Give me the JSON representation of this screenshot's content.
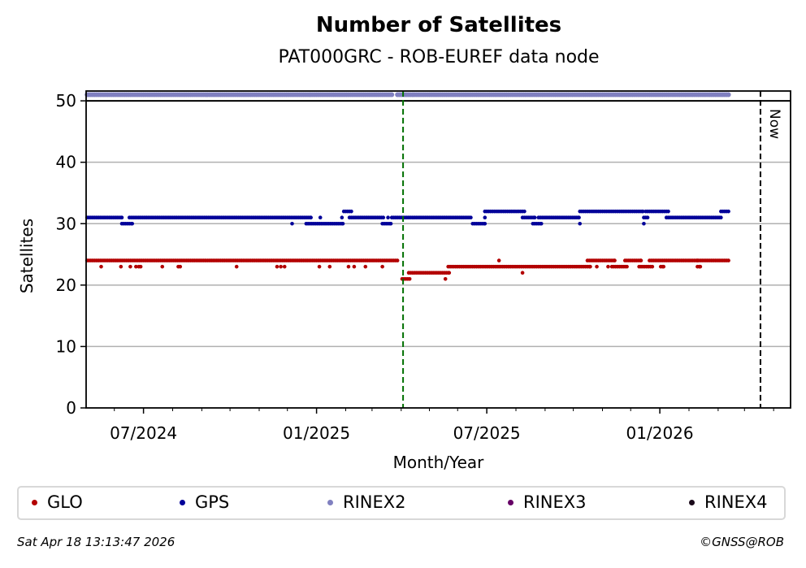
{
  "chart_data": {
    "type": "scatter",
    "title": "Number of Satellites",
    "subtitle": "PAT000GRC - ROB-EUREF data node",
    "xlabel": "Month/Year",
    "ylabel": "Satellites",
    "x_unit": "days since 2024-07-01",
    "xlim": [
      -61,
      688
    ],
    "ylim": [
      0,
      51.6
    ],
    "yticks": [
      0,
      10,
      20,
      30,
      40,
      50
    ],
    "ytick_labels": [
      "0",
      "10",
      "20",
      "30",
      "40",
      "50"
    ],
    "xticks": [
      0,
      184,
      365,
      549
    ],
    "xtick_labels": [
      "07/2024",
      "01/2025",
      "07/2025",
      "01/2026"
    ],
    "minor_xticks": [
      -31,
      31,
      62,
      92,
      123,
      153,
      215,
      243,
      274,
      304,
      334,
      396,
      427,
      457,
      488,
      518,
      580,
      611,
      639,
      670
    ],
    "grid": "y",
    "sample_step_days": 2,
    "markers": [
      {
        "label": "",
        "x": 276,
        "color": "#007000",
        "style": "dashed"
      },
      {
        "label": "Now",
        "x": 656,
        "color": "#000000",
        "style": "dashed"
      }
    ],
    "series": [
      {
        "name": "GLO",
        "color": "#b30000",
        "runs": [
          [
            -60,
            270,
            24
          ],
          [
            275,
            283,
            21
          ],
          [
            321,
            321,
            21
          ],
          [
            282,
            325,
            22
          ],
          [
            403,
            403,
            22
          ],
          [
            324,
            475,
            23
          ],
          [
            482,
            482,
            23
          ],
          [
            494,
            494,
            23
          ],
          [
            498,
            514,
            23
          ],
          [
            527,
            541,
            23
          ],
          [
            550,
            553,
            23
          ],
          [
            589,
            592,
            23
          ],
          [
            378,
            378,
            24
          ],
          [
            472,
            501,
            24
          ],
          [
            512,
            529,
            24
          ],
          [
            538,
            589,
            24
          ],
          [
            590,
            622,
            24
          ]
        ],
        "points": [
          [
            -45,
            23
          ],
          [
            -24,
            23
          ],
          [
            -14,
            23
          ],
          [
            -8,
            23
          ],
          [
            -5,
            23
          ],
          [
            -3,
            23
          ],
          [
            20,
            23
          ],
          [
            37,
            23
          ],
          [
            39,
            23
          ],
          [
            99,
            23
          ],
          [
            142,
            23
          ],
          [
            146,
            23
          ],
          [
            150,
            23
          ],
          [
            187,
            23
          ],
          [
            198,
            23
          ],
          [
            218,
            23
          ],
          [
            224,
            23
          ],
          [
            236,
            23
          ],
          [
            254,
            23
          ]
        ]
      },
      {
        "name": "GPS",
        "color": "#000099",
        "runs": [
          [
            -60,
            -23,
            31
          ],
          [
            -15,
            178,
            31
          ],
          [
            188,
            188,
            31
          ],
          [
            211,
            211,
            31
          ],
          [
            219,
            255,
            31
          ],
          [
            260,
            260,
            31
          ],
          [
            264,
            348,
            31
          ],
          [
            363,
            363,
            31
          ],
          [
            403,
            416,
            31
          ],
          [
            420,
            463,
            31
          ],
          [
            532,
            536,
            31
          ],
          [
            556,
            614,
            31
          ],
          [
            -23,
            -12,
            30
          ],
          [
            158,
            158,
            30
          ],
          [
            173,
            173,
            30
          ],
          [
            175,
            212,
            30
          ],
          [
            254,
            263,
            30
          ],
          [
            350,
            363,
            30
          ],
          [
            414,
            423,
            30
          ],
          [
            464,
            464,
            30
          ],
          [
            532,
            532,
            30
          ],
          [
            213,
            221,
            32
          ],
          [
            363,
            405,
            32
          ],
          [
            464,
            531,
            32
          ],
          [
            534,
            558,
            32
          ],
          [
            614,
            622,
            32
          ]
        ],
        "points": []
      },
      {
        "name": "RINEX2",
        "color": "#8080c0",
        "runs": [
          [
            -60,
            264,
            51
          ],
          [
            270,
            622,
            51
          ]
        ],
        "points": []
      },
      {
        "name": "RINEX3",
        "color": "#660066",
        "runs": [],
        "points": []
      },
      {
        "name": "RINEX4",
        "color": "#1a0a1a",
        "runs": [],
        "points": []
      }
    ]
  },
  "footer": {
    "timestamp": "Sat Apr 18 13:13:47 2026",
    "credit": "©GNSS@ROB"
  }
}
